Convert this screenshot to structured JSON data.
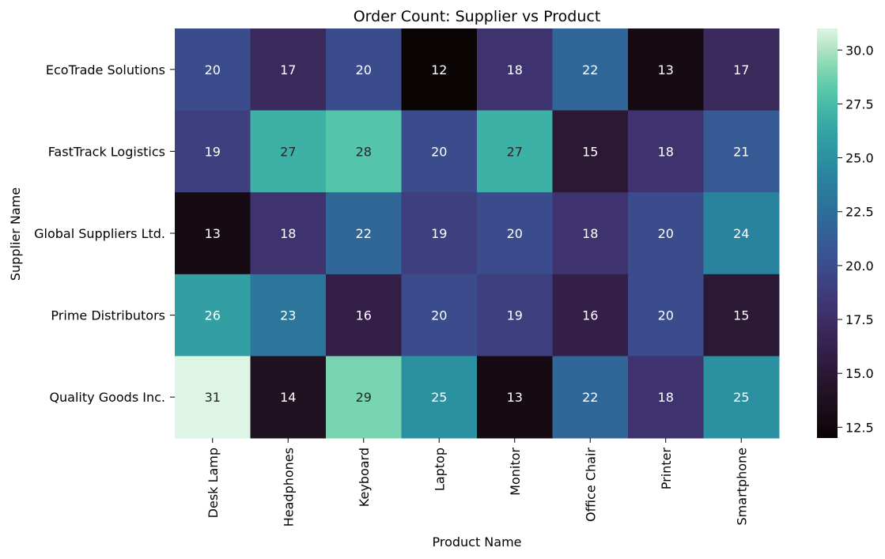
{
  "chart_data": {
    "type": "heatmap",
    "title": "Order Count: Supplier vs Product",
    "xlabel": "Product Name",
    "ylabel": "Supplier Name",
    "x_categories": [
      "Desk Lamp",
      "Headphones",
      "Keyboard",
      "Laptop",
      "Monitor",
      "Office Chair",
      "Printer",
      "Smartphone"
    ],
    "y_categories": [
      "EcoTrade Solutions",
      "FastTrack Logistics",
      "Global Suppliers Ltd.",
      "Prime Distributors",
      "Quality Goods Inc."
    ],
    "values": [
      [
        20,
        17,
        20,
        12,
        18,
        22,
        13,
        17
      ],
      [
        19,
        27,
        28,
        20,
        27,
        15,
        18,
        21
      ],
      [
        13,
        18,
        22,
        19,
        20,
        18,
        20,
        24
      ],
      [
        26,
        23,
        16,
        20,
        19,
        16,
        20,
        15
      ],
      [
        31,
        14,
        29,
        25,
        13,
        22,
        18,
        25
      ]
    ],
    "colorbar": {
      "min": 12,
      "max": 31,
      "ticks": [
        12.5,
        15.0,
        17.5,
        20.0,
        22.5,
        25.0,
        27.5,
        30.0
      ],
      "tick_labels": [
        "12.5",
        "15.0",
        "17.5",
        "20.0",
        "22.5",
        "25.0",
        "27.5",
        "30.0"
      ],
      "colormap": "mako"
    },
    "grid": false,
    "legend": "colorbar-right"
  }
}
